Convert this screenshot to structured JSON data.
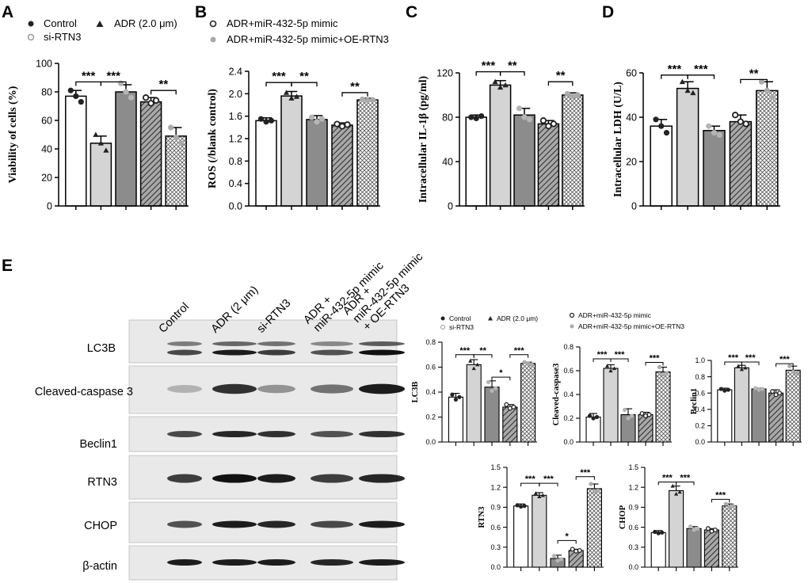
{
  "panel_labels": [
    "A",
    "B",
    "C",
    "D",
    "E"
  ],
  "colors": {
    "control": "#ffffff",
    "adr": "#d4d4d4",
    "si_rtn3": "#8c8c8c",
    "mimic": "#9a9a9a",
    "oe": "#ffffff",
    "point_dark": "#222222",
    "point_light": "#aaaaaa"
  },
  "legend_top": {
    "left": [
      {
        "symbol": "dot",
        "label": "Control"
      },
      {
        "symbol": "triangle",
        "label": "ADR (2.0 μm)"
      },
      {
        "symbol": "ring",
        "label": "si-RTN3"
      }
    ],
    "right": [
      {
        "symbol": "ring-dark",
        "label": "ADR+miR-432-5p mimic"
      },
      {
        "symbol": "dot-light",
        "label": "ADR+miR-432-5p mimic+OE-RTN3"
      }
    ]
  },
  "legend_small": {
    "items": [
      {
        "symbol": "dot",
        "label": "Control"
      },
      {
        "symbol": "triangle",
        "label": "ADR (2.0 μm)"
      },
      {
        "symbol": "ring",
        "label": "si-RTN3"
      },
      {
        "symbol": "ring-dark",
        "label": "ADR+miR-432-5p mimic"
      },
      {
        "symbol": "dot-light",
        "label": "ADR+miR-432-5p mimic+OE-RTN3"
      }
    ]
  },
  "blot": {
    "lanes": [
      "Control",
      "ADR (2 μm)",
      "si-RTN3",
      "ADR + miR-432-5p mimic",
      "ADR + miR-432-5p mimic + OE-RTN3"
    ],
    "lane_lines": [
      [
        "Control"
      ],
      [
        "ADR (2 μm)"
      ],
      [
        "si-RTN3"
      ],
      [
        "ADR +",
        "miR-432-5p mimic"
      ],
      [
        "ADR +",
        "miR-432-5p mimic",
        "+ OE-RTN3"
      ]
    ],
    "proteins": [
      "LC3B",
      "Cleaved-caspase 3",
      "Beclin1",
      "RTN3",
      "CHOP",
      "β-actin"
    ]
  },
  "chart_data": [
    {
      "id": "A",
      "type": "bar",
      "ylabel": "Viability of cells (%)",
      "ylim": [
        0,
        100
      ],
      "yticks": [
        0,
        20,
        40,
        60,
        80,
        100
      ],
      "categories": [
        "Control",
        "ADR (2.0 μm)",
        "si-RTN3",
        "ADR+miR-432-5p mimic",
        "ADR+miR-432-5p mimic+OE-RTN3"
      ],
      "values": [
        77,
        44,
        80,
        73,
        49
      ],
      "errors": [
        4,
        5,
        5,
        3,
        6
      ],
      "points": [
        [
          81,
          77,
          73
        ],
        [
          50,
          44,
          39
        ],
        [
          86,
          80,
          76
        ],
        [
          76,
          72,
          74
        ],
        [
          55,
          48,
          44
        ]
      ],
      "significance": [
        {
          "from": 0,
          "to": 1,
          "label": "***",
          "level": 87
        },
        {
          "from": 1,
          "to": 2,
          "label": "***",
          "level": 87
        },
        {
          "from": 3,
          "to": 4,
          "label": "**",
          "level": 81
        }
      ]
    },
    {
      "id": "B",
      "type": "bar",
      "ylabel": "ROS (/blank control)",
      "ylim": [
        0,
        2.4
      ],
      "yticks": [
        0.0,
        0.4,
        0.8,
        1.2,
        1.6,
        2.0,
        2.4
      ],
      "categories": [
        "Control",
        "ADR (2.0 μm)",
        "si-RTN3",
        "ADR+miR-432-5p mimic",
        "ADR+miR-432-5p mimic+OE-RTN3"
      ],
      "values": [
        1.52,
        1.96,
        1.54,
        1.44,
        1.89
      ],
      "errors": [
        0.05,
        0.08,
        0.07,
        0.04,
        0.03
      ],
      "points": [
        [
          1.55,
          1.5,
          1.52
        ],
        [
          2.02,
          1.92,
          1.95
        ],
        [
          1.58,
          1.5,
          1.55
        ],
        [
          1.46,
          1.42,
          1.45
        ],
        [
          1.9,
          1.88,
          1.89
        ]
      ],
      "significance": [
        {
          "from": 0,
          "to": 1,
          "label": "***",
          "level": 2.2
        },
        {
          "from": 1,
          "to": 2,
          "label": "**",
          "level": 2.2
        },
        {
          "from": 3,
          "to": 4,
          "label": "**",
          "level": 2.02
        }
      ]
    },
    {
      "id": "C",
      "type": "bar",
      "ylabel": "Intracellular IL-1β (pg/ml)",
      "ylim": [
        0,
        120
      ],
      "yticks": [
        0,
        40,
        80,
        120
      ],
      "categories": [
        "Control",
        "ADR (2.0 μm)",
        "si-RTN3",
        "ADR+miR-432-5p mimic",
        "ADR+miR-432-5p mimic+OE-RTN3"
      ],
      "values": [
        80,
        109,
        82,
        74,
        100
      ],
      "errors": [
        2,
        4,
        6,
        3,
        2
      ],
      "points": [
        [
          80,
          79,
          81
        ],
        [
          112,
          107,
          109
        ],
        [
          88,
          80,
          78
        ],
        [
          77,
          72,
          74
        ],
        [
          101,
          99,
          100
        ]
      ],
      "significance": [
        {
          "from": 0,
          "to": 1,
          "label": "***",
          "level": 121
        },
        {
          "from": 1,
          "to": 2,
          "label": "**",
          "level": 121
        },
        {
          "from": 3,
          "to": 4,
          "label": "**",
          "level": 112
        }
      ]
    },
    {
      "id": "D",
      "type": "bar",
      "ylabel": "Intracellular LDH (U/L)",
      "ylim": [
        0,
        60
      ],
      "yticks": [
        0,
        20,
        40,
        60
      ],
      "categories": [
        "Control",
        "ADR (2.0 μm)",
        "si-RTN3",
        "ADR+miR-432-5p mimic",
        "ADR+miR-432-5p mimic+OE-RTN3"
      ],
      "values": [
        36,
        53,
        34,
        38,
        52
      ],
      "errors": [
        3,
        3,
        2,
        3,
        4
      ],
      "points": [
        [
          39,
          36,
          33
        ],
        [
          56,
          52,
          51
        ],
        [
          36,
          33,
          32
        ],
        [
          41,
          38,
          37
        ],
        [
          56,
          52,
          49
        ]
      ],
      "significance": [
        {
          "from": 0,
          "to": 1,
          "label": "***",
          "level": 59
        },
        {
          "from": 1,
          "to": 2,
          "label": "***",
          "level": 59
        },
        {
          "from": 3,
          "to": 4,
          "label": "**",
          "level": 57
        }
      ]
    },
    {
      "id": "E-LC3B",
      "type": "bar",
      "ylabel": "LC3B",
      "ylim": [
        0,
        0.8
      ],
      "yticks": [
        0.0,
        0.2,
        0.4,
        0.6,
        0.8
      ],
      "categories": [
        "Control",
        "ADR (2.0 μm)",
        "si-RTN3",
        "ADR+miR-432-5p mimic",
        "ADR+miR-432-5p mimic+OE-RTN3"
      ],
      "values": [
        0.36,
        0.62,
        0.44,
        0.28,
        0.63
      ],
      "errors": [
        0.03,
        0.04,
        0.05,
        0.02,
        0.01
      ],
      "points": [
        [
          0.38,
          0.34,
          0.36
        ],
        [
          0.65,
          0.59,
          0.62
        ],
        [
          0.48,
          0.41,
          0.43
        ],
        [
          0.3,
          0.27,
          0.28
        ],
        [
          0.64,
          0.63,
          0.62
        ]
      ],
      "significance": [
        {
          "from": 0,
          "to": 1,
          "label": "***",
          "level": 0.7
        },
        {
          "from": 1,
          "to": 2,
          "label": "**",
          "level": 0.7
        },
        {
          "from": 2,
          "to": 3,
          "label": "*",
          "level": 0.52
        },
        {
          "from": 3,
          "to": 4,
          "label": "***",
          "level": 0.7
        }
      ]
    },
    {
      "id": "E-Caspase",
      "type": "bar",
      "ylabel": "Cleaved-caspase3",
      "ylim": [
        0,
        0.8
      ],
      "yticks": [
        0.0,
        0.2,
        0.4,
        0.6,
        0.8
      ],
      "categories": [
        "Control",
        "ADR (2.0 μm)",
        "si-RTN3",
        "ADR+miR-432-5p mimic",
        "ADR+miR-432-5p mimic+OE-RTN3"
      ],
      "values": [
        0.21,
        0.62,
        0.23,
        0.23,
        0.59
      ],
      "errors": [
        0.03,
        0.03,
        0.05,
        0.02,
        0.04
      ],
      "points": [
        [
          0.22,
          0.2,
          0.21
        ],
        [
          0.64,
          0.6,
          0.62
        ],
        [
          0.27,
          0.2,
          0.22
        ],
        [
          0.24,
          0.22,
          0.23
        ],
        [
          0.63,
          0.57,
          0.58
        ]
      ],
      "significance": [
        {
          "from": 0,
          "to": 1,
          "label": "***",
          "level": 0.7
        },
        {
          "from": 1,
          "to": 2,
          "label": "***",
          "level": 0.7
        },
        {
          "from": 3,
          "to": 4,
          "label": "***",
          "level": 0.67
        }
      ]
    },
    {
      "id": "E-Beclin1",
      "type": "bar",
      "ylabel": "Beclin1",
      "ylim": [
        0,
        1.0
      ],
      "yticks": [
        0.0,
        0.2,
        0.4,
        0.6,
        0.8,
        1.0
      ],
      "categories": [
        "Control",
        "ADR (2.0 μm)",
        "si-RTN3",
        "ADR+miR-432-5p mimic",
        "ADR+miR-432-5p mimic+OE-RTN3"
      ],
      "values": [
        0.64,
        0.91,
        0.65,
        0.6,
        0.88
      ],
      "errors": [
        0.02,
        0.03,
        0.01,
        0.04,
        0.05
      ],
      "points": [
        [
          0.65,
          0.63,
          0.64
        ],
        [
          0.93,
          0.89,
          0.91
        ],
        [
          0.66,
          0.64,
          0.65
        ],
        [
          0.62,
          0.58,
          0.6
        ],
        [
          0.93,
          0.86,
          0.85
        ]
      ],
      "significance": [
        {
          "from": 0,
          "to": 1,
          "label": "***",
          "level": 0.98
        },
        {
          "from": 1,
          "to": 2,
          "label": "***",
          "level": 0.98
        },
        {
          "from": 3,
          "to": 4,
          "label": "***",
          "level": 0.96
        }
      ]
    },
    {
      "id": "E-RTN3",
      "type": "bar",
      "ylabel": "RTN3",
      "ylim": [
        0,
        1.5
      ],
      "yticks": [
        0.0,
        0.3,
        0.6,
        0.9,
        1.2,
        1.5
      ],
      "categories": [
        "Control",
        "ADR (2.0 μm)",
        "si-RTN3",
        "ADR+miR-432-5p mimic",
        "ADR+miR-432-5p mimic+OE-RTN3"
      ],
      "values": [
        0.92,
        1.08,
        0.13,
        0.25,
        1.18
      ],
      "errors": [
        0.03,
        0.04,
        0.05,
        0.02,
        0.07
      ],
      "points": [
        [
          0.93,
          0.91,
          0.92
        ],
        [
          1.11,
          1.06,
          1.08
        ],
        [
          0.17,
          0.1,
          0.12
        ],
        [
          0.27,
          0.24,
          0.25
        ],
        [
          1.25,
          1.14,
          1.15
        ]
      ],
      "significance": [
        {
          "from": 0,
          "to": 1,
          "label": "***",
          "level": 1.26
        },
        {
          "from": 1,
          "to": 2,
          "label": "***",
          "level": 1.26
        },
        {
          "from": 2,
          "to": 3,
          "label": "*",
          "level": 0.4
        },
        {
          "from": 3,
          "to": 4,
          "label": "***",
          "level": 1.36
        }
      ]
    },
    {
      "id": "E-CHOP",
      "type": "bar",
      "ylabel": "CHOP",
      "ylim": [
        0,
        1.5
      ],
      "yticks": [
        0.0,
        0.3,
        0.6,
        0.9,
        1.2,
        1.5
      ],
      "categories": [
        "Control",
        "ADR (2.0 μm)",
        "si-RTN3",
        "ADR+miR-432-5p mimic",
        "ADR+miR-432-5p mimic+OE-RTN3"
      ],
      "values": [
        0.52,
        1.15,
        0.58,
        0.56,
        0.92
      ],
      "errors": [
        0.03,
        0.07,
        0.03,
        0.02,
        0.03
      ],
      "points": [
        [
          0.53,
          0.51,
          0.52
        ],
        [
          1.22,
          1.1,
          1.13
        ],
        [
          0.61,
          0.56,
          0.58
        ],
        [
          0.58,
          0.54,
          0.56
        ],
        [
          0.95,
          0.9,
          0.92
        ]
      ],
      "significance": [
        {
          "from": 0,
          "to": 1,
          "label": "***",
          "level": 1.28
        },
        {
          "from": 1,
          "to": 2,
          "label": "***",
          "level": 1.28
        },
        {
          "from": 3,
          "to": 4,
          "label": "***",
          "level": 1.02
        }
      ]
    }
  ]
}
